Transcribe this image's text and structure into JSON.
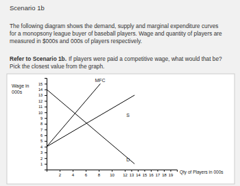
{
  "document": {
    "heading": "Scenario 1b",
    "paragraph": [
      "The following diagram shows the demand, supply and marginal expenditure curves",
      "for a monopsony league buyer of baseball players. Wage and quantity of players are",
      "measured in $000s and 000s of players respectively."
    ],
    "question": {
      "lead": "Refer to Scenario 1b.",
      "lines": [
        "If players were paid a competitive wage, what would that be?",
        "Pick the closest value from the graph."
      ]
    }
  },
  "chart_data": {
    "type": "line",
    "y_label": [
      "Wage in",
      "000s"
    ],
    "x_label": "Qty of Players in 000s",
    "xlim": [
      0,
      20
    ],
    "xticks": [
      2,
      4,
      6,
      8,
      10,
      12,
      13,
      14,
      15,
      16,
      17,
      18,
      19
    ],
    "ylim": [
      0,
      16
    ],
    "yticks": [
      1,
      2,
      3,
      4,
      5,
      6,
      7,
      8,
      9,
      10,
      11,
      12,
      13,
      14,
      15
    ],
    "grid": false,
    "series": [
      {
        "name": "MFC",
        "color": "#000000",
        "x": [
          0,
          8.25
        ],
        "values": [
          4,
          15
        ]
      },
      {
        "name": "S",
        "color": "#000000",
        "x": [
          0,
          13.5
        ],
        "values": [
          4,
          13
        ]
      },
      {
        "name": "D",
        "color": "#000000",
        "x": [
          0,
          13.5
        ],
        "values": [
          14,
          1
        ]
      }
    ]
  }
}
